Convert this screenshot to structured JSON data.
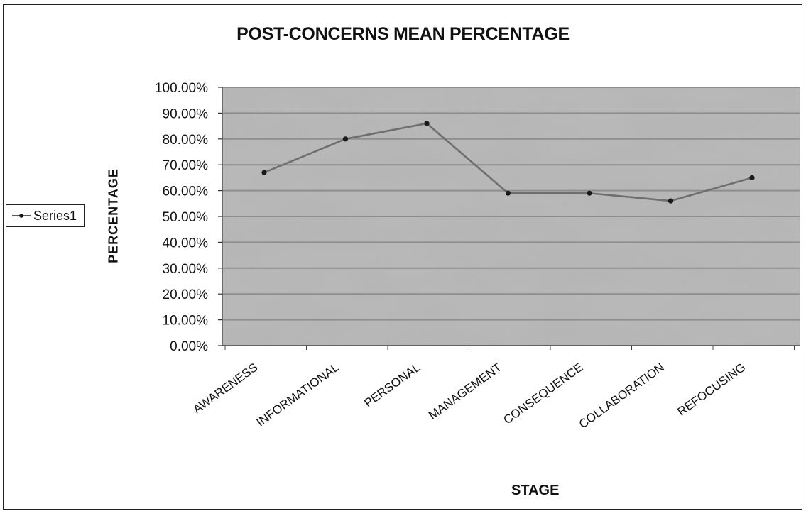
{
  "chart_data": {
    "type": "line",
    "title": "POST-CONCERNS MEAN PERCENTAGE",
    "xlabel": "STAGE",
    "ylabel": "PERCENTAGE",
    "categories": [
      "AWARENESS",
      "INFORMATIONAL",
      "PERSONAL",
      "MANAGEMENT",
      "CONSEQUENCE",
      "COLLABORATION",
      "REFOCUSING"
    ],
    "y_ticks": [
      "0.00%",
      "10.00%",
      "20.00%",
      "30.00%",
      "40.00%",
      "50.00%",
      "60.00%",
      "70.00%",
      "80.00%",
      "90.00%",
      "100.00%"
    ],
    "ylim": [
      0,
      1
    ],
    "series": [
      {
        "name": "Series1",
        "values": [
          0.67,
          0.8,
          0.86,
          0.59,
          0.59,
          0.56,
          0.65
        ]
      }
    ],
    "legend_position": "left",
    "grid": true
  },
  "colors": {
    "plot_background": "#b8b8b8",
    "gridline": "#8e8e8e",
    "line": "#6f6f6f",
    "marker": "#1a1a1a"
  }
}
